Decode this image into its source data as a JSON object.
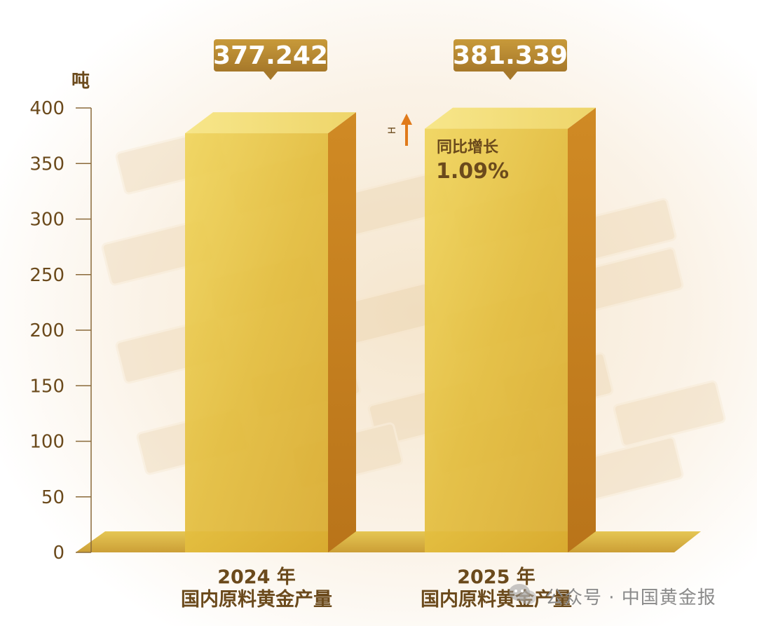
{
  "chart_data": {
    "type": "bar",
    "unit_label": "吨",
    "categories": [
      {
        "year": "2024 年",
        "name": "国内原料黄金产量"
      },
      {
        "year": "2025 年",
        "name": "国内原料黄金产量"
      }
    ],
    "values": [
      377.242,
      381.339
    ],
    "value_labels": [
      "377.242",
      "381.339"
    ],
    "ylim": [
      0,
      400
    ],
    "yticks": [
      0,
      50,
      100,
      150,
      200,
      250,
      300,
      350,
      400
    ],
    "annotation": {
      "title": "同比增长",
      "value": "1.09%",
      "arrow_label": "H"
    },
    "colors": {
      "bar_front": "#e8c54a",
      "bar_side": "#c8861e",
      "bar_top": "#f3df7a",
      "label_bg": "#b88a2c",
      "text_brown": "#6b4a1c",
      "arrow": "#e07a1a"
    }
  },
  "watermark": {
    "text": "公众号 · 中国黄金报"
  }
}
